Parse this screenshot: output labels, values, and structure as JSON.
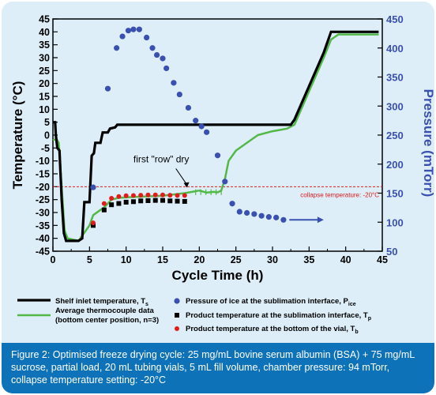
{
  "caption": {
    "line1": "Figure 2: Optimised freeze drying cycle: 25 mg/mL bovine serum albumin (BSA) + 75 mg/mL",
    "line2": "sucrose, partial load, 20 mL tubing vials, 5 mL fill volume, chamber pressure: 94 mTorr,",
    "line3": "collapse temperature setting: -20°C"
  },
  "colors": {
    "panel_bg": "#ddeef8",
    "caption_bg": "#0e72b8",
    "shelf": "#000000",
    "thermocouple": "#52b848",
    "pressure": "#3a50b0",
    "collapse": "#e21b1b",
    "product_interface": "#000000",
    "product_bottom": "#e21b1b"
  },
  "chart_data": {
    "type": "line",
    "xlabel": "Cycle Time (h)",
    "ylabel": "Temperature (°C)",
    "y2label": "Pressure (mTorr)",
    "xlim": [
      0,
      45
    ],
    "ylim": [
      -45,
      45
    ],
    "y2lim": [
      50,
      450
    ],
    "xticks": [
      0,
      5,
      10,
      15,
      20,
      25,
      30,
      35,
      40,
      45
    ],
    "yticks": [
      -45,
      -40,
      -35,
      -30,
      -25,
      -20,
      -15,
      -10,
      -5,
      0,
      5,
      10,
      15,
      20,
      25,
      30,
      35,
      40,
      45
    ],
    "y2ticks": [
      50,
      100,
      150,
      200,
      250,
      300,
      350,
      400,
      450
    ],
    "annotations": {
      "first_row": "first \"row\" dry",
      "collapse": "collapse temperature: -20°C"
    },
    "collapse_temperature": -20,
    "series": [
      {
        "name": "Shelf inlet temperature, T",
        "sub": "s",
        "axis": "left",
        "kind": "line",
        "points": [
          [
            0,
            5
          ],
          [
            0.3,
            5
          ],
          [
            0.4,
            0
          ],
          [
            0.6,
            -5
          ],
          [
            0.9,
            -6
          ],
          [
            1.2,
            -25
          ],
          [
            1.5,
            -38
          ],
          [
            1.8,
            -41
          ],
          [
            3.5,
            -41
          ],
          [
            4,
            -40
          ],
          [
            4.3,
            -26
          ],
          [
            5,
            -26
          ],
          [
            5.3,
            -8
          ],
          [
            5.6,
            -7
          ],
          [
            5.8,
            -3
          ],
          [
            6.5,
            -3
          ],
          [
            6.8,
            1
          ],
          [
            7.5,
            1
          ],
          [
            7.8,
            2.5
          ],
          [
            8.5,
            3
          ],
          [
            8.8,
            4
          ],
          [
            32.5,
            4
          ],
          [
            33,
            6
          ],
          [
            37,
            32
          ],
          [
            38,
            40
          ],
          [
            42,
            40
          ],
          [
            44.5,
            40
          ]
        ]
      },
      {
        "name": "Average thermocouple data",
        "name2": "(bottom center position, n=3)",
        "axis": "left",
        "kind": "line",
        "points": [
          [
            0,
            -2
          ],
          [
            0.5,
            -1.5
          ],
          [
            0.8,
            -3
          ],
          [
            1.2,
            -20
          ],
          [
            1.6,
            -37
          ],
          [
            2,
            -40
          ],
          [
            3.5,
            -41
          ],
          [
            4,
            -39
          ],
          [
            5,
            -35
          ],
          [
            5.5,
            -31
          ],
          [
            6.5,
            -29
          ],
          [
            7,
            -28
          ],
          [
            8,
            -25
          ],
          [
            9,
            -24.3
          ],
          [
            11,
            -24
          ],
          [
            15,
            -23.5
          ],
          [
            18,
            -22.5
          ],
          [
            19,
            -22
          ],
          [
            20,
            -21.5
          ],
          [
            21,
            -22.3
          ],
          [
            22,
            -22
          ],
          [
            22.5,
            -22.2
          ],
          [
            23,
            -21.5
          ],
          [
            23.5,
            -17
          ],
          [
            24,
            -10
          ],
          [
            25,
            -6
          ],
          [
            26,
            -4
          ],
          [
            27,
            -2
          ],
          [
            28,
            0
          ],
          [
            30,
            1.5
          ],
          [
            31,
            2
          ],
          [
            32,
            2.5
          ],
          [
            33,
            4
          ],
          [
            37,
            30
          ],
          [
            38,
            37
          ],
          [
            39,
            39
          ],
          [
            44.5,
            39
          ]
        ]
      },
      {
        "name": "Pressure of ice at the sublimation interface, P",
        "sub": "ice",
        "axis": "right",
        "kind": "scatter",
        "points": [
          [
            5.5,
            160
          ],
          [
            7.5,
            330
          ],
          [
            8.7,
            400
          ],
          [
            9.5,
            420
          ],
          [
            10.3,
            430
          ],
          [
            11,
            432
          ],
          [
            11.8,
            432
          ],
          [
            12.8,
            418
          ],
          [
            13.6,
            400
          ],
          [
            14.2,
            388
          ],
          [
            15,
            382
          ],
          [
            15.5,
            365
          ],
          [
            16.5,
            340
          ],
          [
            17.3,
            320
          ],
          [
            18.5,
            297
          ],
          [
            19.5,
            275
          ],
          [
            20.3,
            265
          ],
          [
            21,
            255
          ],
          [
            22.5,
            215
          ],
          [
            23.5,
            170
          ],
          [
            24.5,
            132
          ],
          [
            25.5,
            118
          ],
          [
            26.5,
            116
          ],
          [
            27.5,
            114
          ],
          [
            28.5,
            111
          ],
          [
            29.5,
            109
          ],
          [
            30.5,
            108
          ],
          [
            31.5,
            104
          ]
        ]
      },
      {
        "name": "Product temperature at the sublimation interface, T",
        "sub": "p",
        "axis": "left",
        "kind": "scatter",
        "points": [
          [
            5.5,
            -35
          ],
          [
            7,
            -29
          ],
          [
            8,
            -27
          ],
          [
            9,
            -26.5
          ],
          [
            10,
            -26
          ],
          [
            11,
            -25.8
          ],
          [
            12,
            -25.5
          ],
          [
            13,
            -25.4
          ],
          [
            14,
            -25.3
          ],
          [
            15,
            -25.3
          ],
          [
            16,
            -25.5
          ],
          [
            17,
            -25.6
          ],
          [
            18,
            -25.7
          ]
        ]
      },
      {
        "name": "Product temperature at the bottom of the vial, T",
        "sub": "b",
        "axis": "left",
        "kind": "scatter",
        "points": [
          [
            5.5,
            -34
          ],
          [
            7,
            -26.5
          ],
          [
            8,
            -24.5
          ],
          [
            9,
            -23.8
          ],
          [
            10,
            -23.5
          ],
          [
            11,
            -23.4
          ],
          [
            12,
            -23.3
          ],
          [
            13,
            -23.2
          ],
          [
            14,
            -23.2
          ],
          [
            15,
            -23.2
          ],
          [
            16,
            -23.3
          ],
          [
            17,
            -23.4
          ],
          [
            18,
            -23.4
          ]
        ]
      }
    ],
    "legend": {
      "position": "bottom"
    }
  }
}
